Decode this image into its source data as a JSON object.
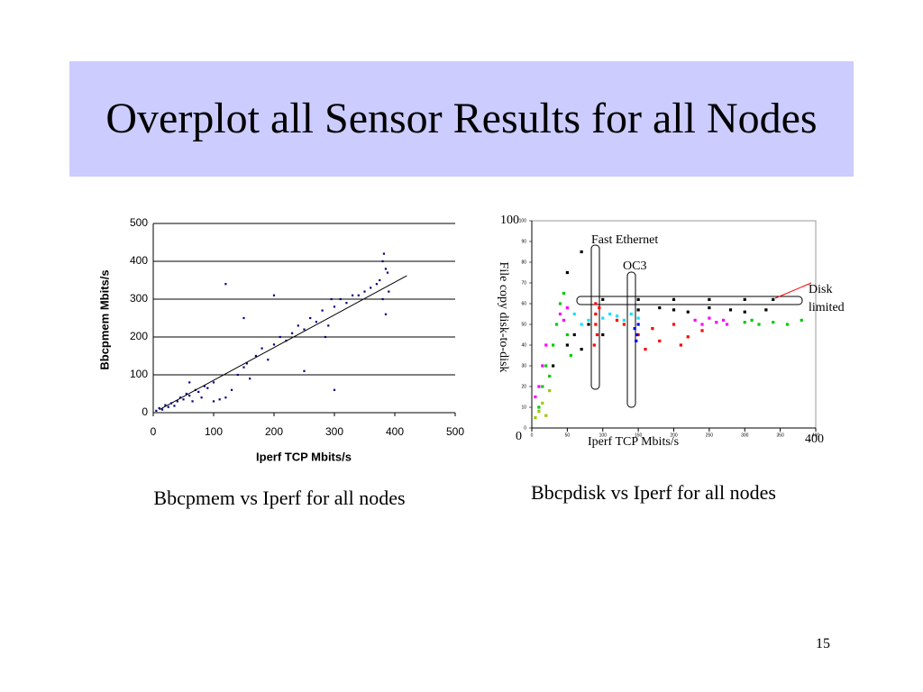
{
  "slide": {
    "title": "Overplot all Sensor Results for all Nodes",
    "captions": [
      "Bbcpmem vs Iperf for all nodes",
      "Bbcpdisk vs Iperf for all nodes"
    ],
    "page_number": "15"
  },
  "chart_data": [
    {
      "type": "scatter",
      "x_label": "Iperf TCP Mbits/s",
      "y_label": "Bbcpmem Mbits/s",
      "xlim": [
        0,
        500
      ],
      "xticks": [
        0,
        100,
        200,
        300,
        400,
        500
      ],
      "ylim": [
        0,
        500
      ],
      "yticks": [
        0,
        100,
        200,
        300,
        400,
        500
      ],
      "grid": true,
      "series": [
        {
          "color": "#000080",
          "x": [
            5,
            10,
            15,
            20,
            25,
            30,
            35,
            40,
            45,
            50,
            55,
            60,
            65,
            70,
            75,
            80,
            85,
            90,
            100,
            110,
            120,
            130,
            140,
            150,
            155,
            160,
            170,
            180,
            190,
            200,
            210,
            220,
            230,
            240,
            250,
            260,
            270,
            280,
            285,
            290,
            295,
            300,
            310,
            320,
            330,
            340,
            350,
            360,
            370,
            375,
            380,
            380,
            382,
            385,
            388,
            390,
            385,
            120,
            150,
            200,
            250,
            300,
            60,
            100
          ],
          "values": [
            5,
            12,
            8,
            20,
            15,
            25,
            18,
            30,
            40,
            35,
            50,
            45,
            30,
            60,
            55,
            40,
            70,
            65,
            30,
            35,
            40,
            60,
            100,
            120,
            130,
            90,
            150,
            170,
            140,
            180,
            200,
            190,
            210,
            230,
            220,
            250,
            240,
            270,
            200,
            230,
            300,
            280,
            300,
            290,
            310,
            310,
            320,
            330,
            340,
            350,
            400,
            300,
            420,
            260,
            370,
            320,
            380,
            340,
            250,
            310,
            110,
            60,
            80,
            80
          ]
        }
      ],
      "trend": {
        "color": "#000000",
        "x": [
          10,
          420
        ],
        "values": [
          8,
          362
        ]
      }
    },
    {
      "type": "scatter",
      "x_label": "Iperf  TCP Mbits/s",
      "y_label": "File copy disk-to-disk",
      "xlim": [
        0,
        400
      ],
      "xticks": [
        0,
        50,
        100,
        150,
        200,
        250,
        300,
        350,
        400
      ],
      "ylim": [
        0,
        100
      ],
      "yticks": [
        0,
        10,
        20,
        30,
        40,
        50,
        60,
        70,
        80,
        90,
        100
      ],
      "grid": false,
      "annotations": [
        "Fast Ethernet",
        "OC3",
        "Disk limited"
      ],
      "series": [
        {
          "color": "#ff0000",
          "x": [
            90,
            90,
            90,
            92,
            88,
            95,
            150,
            170,
            180,
            200,
            220,
            240,
            120,
            130,
            210,
            160
          ],
          "values": [
            60,
            55,
            50,
            45,
            40,
            58,
            45,
            48,
            42,
            50,
            44,
            47,
            52,
            50,
            40,
            38
          ]
        },
        {
          "color": "#00cc00",
          "x": [
            10,
            15,
            20,
            25,
            30,
            35,
            40,
            45,
            50,
            55,
            300,
            310,
            320,
            340,
            360,
            380
          ],
          "values": [
            10,
            20,
            30,
            25,
            40,
            50,
            60,
            65,
            45,
            35,
            51,
            52,
            50,
            51,
            50,
            52
          ]
        },
        {
          "color": "#ff00ff",
          "x": [
            5,
            10,
            15,
            20,
            40,
            45,
            50,
            230,
            240,
            250,
            260,
            270,
            275
          ],
          "values": [
            15,
            20,
            30,
            40,
            55,
            52,
            58,
            52,
            50,
            53,
            51,
            52,
            50
          ]
        },
        {
          "color": "#00e5ff",
          "x": [
            60,
            70,
            80,
            100,
            110,
            120,
            130,
            140,
            150
          ],
          "values": [
            55,
            50,
            52,
            53,
            55,
            54,
            52,
            55,
            53
          ]
        },
        {
          "color": "#000000",
          "x": [
            30,
            50,
            60,
            70,
            80,
            100,
            150,
            180,
            200,
            220,
            250,
            280,
            300,
            330,
            150,
            200,
            250,
            300,
            340,
            100,
            50,
            70
          ],
          "values": [
            30,
            40,
            45,
            38,
            50,
            45,
            57,
            58,
            57,
            56,
            58,
            57,
            56,
            57,
            62,
            62,
            62,
            62,
            62,
            62,
            75,
            85
          ]
        },
        {
          "color": "#0000ff",
          "x": [
            145,
            148,
            150,
            147
          ],
          "values": [
            48,
            45,
            50,
            42
          ]
        },
        {
          "color": "#99cc00",
          "x": [
            5,
            10,
            15,
            20,
            25
          ],
          "values": [
            5,
            8,
            12,
            6,
            18
          ]
        }
      ]
    }
  ]
}
